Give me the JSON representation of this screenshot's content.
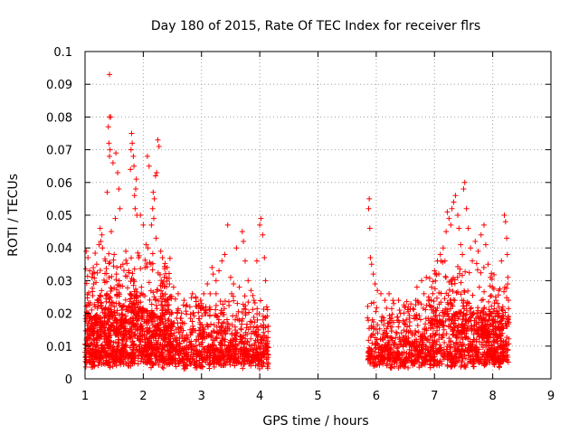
{
  "chart_data": {
    "type": "scatter",
    "title": "Day 180 of 2015, Rate Of TEC Index for receiver flrs",
    "xlabel": "GPS time / hours",
    "ylabel": "ROTI / TECUs",
    "xlim": [
      1,
      9
    ],
    "ylim": [
      0,
      0.1
    ],
    "xticks": [
      "1",
      "2",
      "3",
      "4",
      "5",
      "6",
      "7",
      "8",
      "9"
    ],
    "yticks": [
      "0",
      "0.01",
      "0.02",
      "0.03",
      "0.04",
      "0.05",
      "0.06",
      "0.07",
      "0.08",
      "0.09",
      "0.1"
    ],
    "grid": true,
    "marker": "+",
    "color": "#ff0000",
    "series": [
      {
        "name": "ROTI",
        "points": [
          [
            1.42,
            0.093
          ],
          [
            1.42,
            0.08
          ],
          [
            1.44,
            0.08
          ],
          [
            1.4,
            0.077
          ],
          [
            1.41,
            0.072
          ],
          [
            1.43,
            0.07
          ],
          [
            1.42,
            0.068
          ],
          [
            1.48,
            0.066
          ],
          [
            1.53,
            0.069
          ],
          [
            1.56,
            0.063
          ],
          [
            1.58,
            0.058
          ],
          [
            1.6,
            0.052
          ],
          [
            1.52,
            0.049
          ],
          [
            1.38,
            0.057
          ],
          [
            1.45,
            0.045
          ],
          [
            1.26,
            0.046
          ],
          [
            1.29,
            0.044
          ],
          [
            1.27,
            0.042
          ],
          [
            1.24,
            0.041
          ],
          [
            1.3,
            0.04
          ],
          [
            1.8,
            0.075
          ],
          [
            1.81,
            0.072
          ],
          [
            1.79,
            0.07
          ],
          [
            1.83,
            0.068
          ],
          [
            1.78,
            0.064
          ],
          [
            1.84,
            0.065
          ],
          [
            1.88,
            0.061
          ],
          [
            1.87,
            0.058
          ],
          [
            1.85,
            0.056
          ],
          [
            1.86,
            0.052
          ],
          [
            1.89,
            0.05
          ],
          [
            1.95,
            0.05
          ],
          [
            2.0,
            0.047
          ],
          [
            2.07,
            0.068
          ],
          [
            2.1,
            0.065
          ],
          [
            2.25,
            0.073
          ],
          [
            2.27,
            0.071
          ],
          [
            2.23,
            0.063
          ],
          [
            2.21,
            0.062
          ],
          [
            2.17,
            0.057
          ],
          [
            2.19,
            0.055
          ],
          [
            2.16,
            0.052
          ],
          [
            2.18,
            0.049
          ],
          [
            2.14,
            0.047
          ],
          [
            2.22,
            0.043
          ],
          [
            2.05,
            0.041
          ],
          [
            2.08,
            0.04
          ],
          [
            2.3,
            0.039
          ],
          [
            2.33,
            0.037
          ],
          [
            2.41,
            0.034
          ],
          [
            1.02,
            0.039
          ],
          [
            1.05,
            0.037
          ],
          [
            1.08,
            0.033
          ],
          [
            1.12,
            0.031
          ],
          [
            1.15,
            0.029
          ],
          [
            1.2,
            0.035
          ],
          [
            1.35,
            0.036
          ],
          [
            1.5,
            0.038
          ],
          [
            1.65,
            0.035
          ],
          [
            1.7,
            0.039
          ],
          [
            1.75,
            0.033
          ],
          [
            1.92,
            0.037
          ],
          [
            2.03,
            0.034
          ],
          [
            2.36,
            0.031
          ],
          [
            2.45,
            0.029
          ],
          [
            2.52,
            0.028
          ],
          [
            2.6,
            0.026
          ],
          [
            2.7,
            0.024
          ],
          [
            2.8,
            0.022
          ],
          [
            2.9,
            0.025
          ],
          [
            3.0,
            0.023
          ],
          [
            3.05,
            0.021
          ],
          [
            3.1,
            0.029
          ],
          [
            3.18,
            0.034
          ],
          [
            3.2,
            0.032
          ],
          [
            3.25,
            0.03
          ],
          [
            3.3,
            0.033
          ],
          [
            3.35,
            0.036
          ],
          [
            3.4,
            0.038
          ],
          [
            3.45,
            0.047
          ],
          [
            3.5,
            0.031
          ],
          [
            3.55,
            0.029
          ],
          [
            3.6,
            0.04
          ],
          [
            3.65,
            0.028
          ],
          [
            3.7,
            0.045
          ],
          [
            3.72,
            0.042
          ],
          [
            3.75,
            0.036
          ],
          [
            3.8,
            0.03
          ],
          [
            3.85,
            0.027
          ],
          [
            3.9,
            0.024
          ],
          [
            3.95,
            0.036
          ],
          [
            4.0,
            0.047
          ],
          [
            4.02,
            0.049
          ],
          [
            4.05,
            0.044
          ],
          [
            4.08,
            0.037
          ],
          [
            4.1,
            0.03
          ],
          [
            4.12,
            0.022
          ],
          [
            5.88,
            0.055
          ],
          [
            5.87,
            0.052
          ],
          [
            5.89,
            0.046
          ],
          [
            5.9,
            0.037
          ],
          [
            5.92,
            0.035
          ],
          [
            5.95,
            0.032
          ],
          [
            5.98,
            0.029
          ],
          [
            6.02,
            0.027
          ],
          [
            6.08,
            0.026
          ],
          [
            6.15,
            0.024
          ],
          [
            6.22,
            0.026
          ],
          [
            6.3,
            0.023
          ],
          [
            6.4,
            0.021
          ],
          [
            6.55,
            0.022
          ],
          [
            6.7,
            0.028
          ],
          [
            6.78,
            0.03
          ],
          [
            6.82,
            0.026
          ],
          [
            6.86,
            0.031
          ],
          [
            6.9,
            0.025
          ],
          [
            6.95,
            0.028
          ],
          [
            7.0,
            0.033
          ],
          [
            7.05,
            0.036
          ],
          [
            7.1,
            0.038
          ],
          [
            7.15,
            0.04
          ],
          [
            7.2,
            0.045
          ],
          [
            7.22,
            0.051
          ],
          [
            7.25,
            0.049
          ],
          [
            7.28,
            0.047
          ],
          [
            7.3,
            0.052
          ],
          [
            7.33,
            0.054
          ],
          [
            7.36,
            0.056
          ],
          [
            7.4,
            0.05
          ],
          [
            7.42,
            0.046
          ],
          [
            7.45,
            0.041
          ],
          [
            7.48,
            0.038
          ],
          [
            7.5,
            0.058
          ],
          [
            7.52,
            0.06
          ],
          [
            7.55,
            0.052
          ],
          [
            7.58,
            0.046
          ],
          [
            7.62,
            0.04
          ],
          [
            7.65,
            0.036
          ],
          [
            7.7,
            0.042
          ],
          [
            7.75,
            0.039
          ],
          [
            7.8,
            0.044
          ],
          [
            7.85,
            0.047
          ],
          [
            7.88,
            0.041
          ],
          [
            7.92,
            0.035
          ],
          [
            7.96,
            0.031
          ],
          [
            8.0,
            0.028
          ],
          [
            8.05,
            0.025
          ],
          [
            8.1,
            0.027
          ],
          [
            8.15,
            0.036
          ],
          [
            8.2,
            0.05
          ],
          [
            8.22,
            0.048
          ],
          [
            8.24,
            0.043
          ],
          [
            8.25,
            0.038
          ],
          [
            8.26,
            0.031
          ],
          [
            8.27,
            0.024
          ]
        ]
      }
    ],
    "dense_bands": [
      {
        "x_start": 1.0,
        "x_end": 4.15,
        "y_low": 0.003,
        "y_high": 0.026,
        "count": 1600,
        "seed": 17
      },
      {
        "x_start": 1.0,
        "x_end": 2.5,
        "y_low": 0.012,
        "y_high": 0.04,
        "count": 500,
        "seed": 29
      },
      {
        "x_start": 5.85,
        "x_end": 8.28,
        "y_low": 0.003,
        "y_high": 0.024,
        "count": 1100,
        "seed": 43
      },
      {
        "x_start": 6.9,
        "x_end": 8.28,
        "y_low": 0.012,
        "y_high": 0.036,
        "count": 300,
        "seed": 61
      }
    ]
  }
}
